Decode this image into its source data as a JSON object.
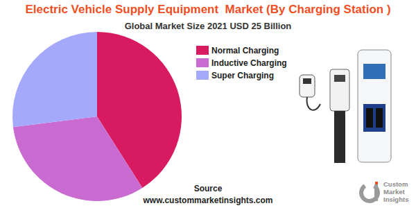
{
  "chart_data": {
    "type": "pie",
    "title": "Electric Vehicle Supply Equipment  Market (By Charging Station )",
    "subtitle": "Global Market Size 2021 USD 25 Billion",
    "categories": [
      "Normal Charging",
      "Inductive Charging",
      "Super Charging"
    ],
    "values": [
      41,
      32,
      27
    ],
    "colors": [
      "#d81b60",
      "#c96bd0",
      "#a4a9fc"
    ],
    "legend": "right",
    "data_labels": false,
    "source": "Source",
    "source_url": "www.custommarketinsights.com",
    "logo": [
      "Custom",
      "Market",
      "Insights"
    ]
  }
}
